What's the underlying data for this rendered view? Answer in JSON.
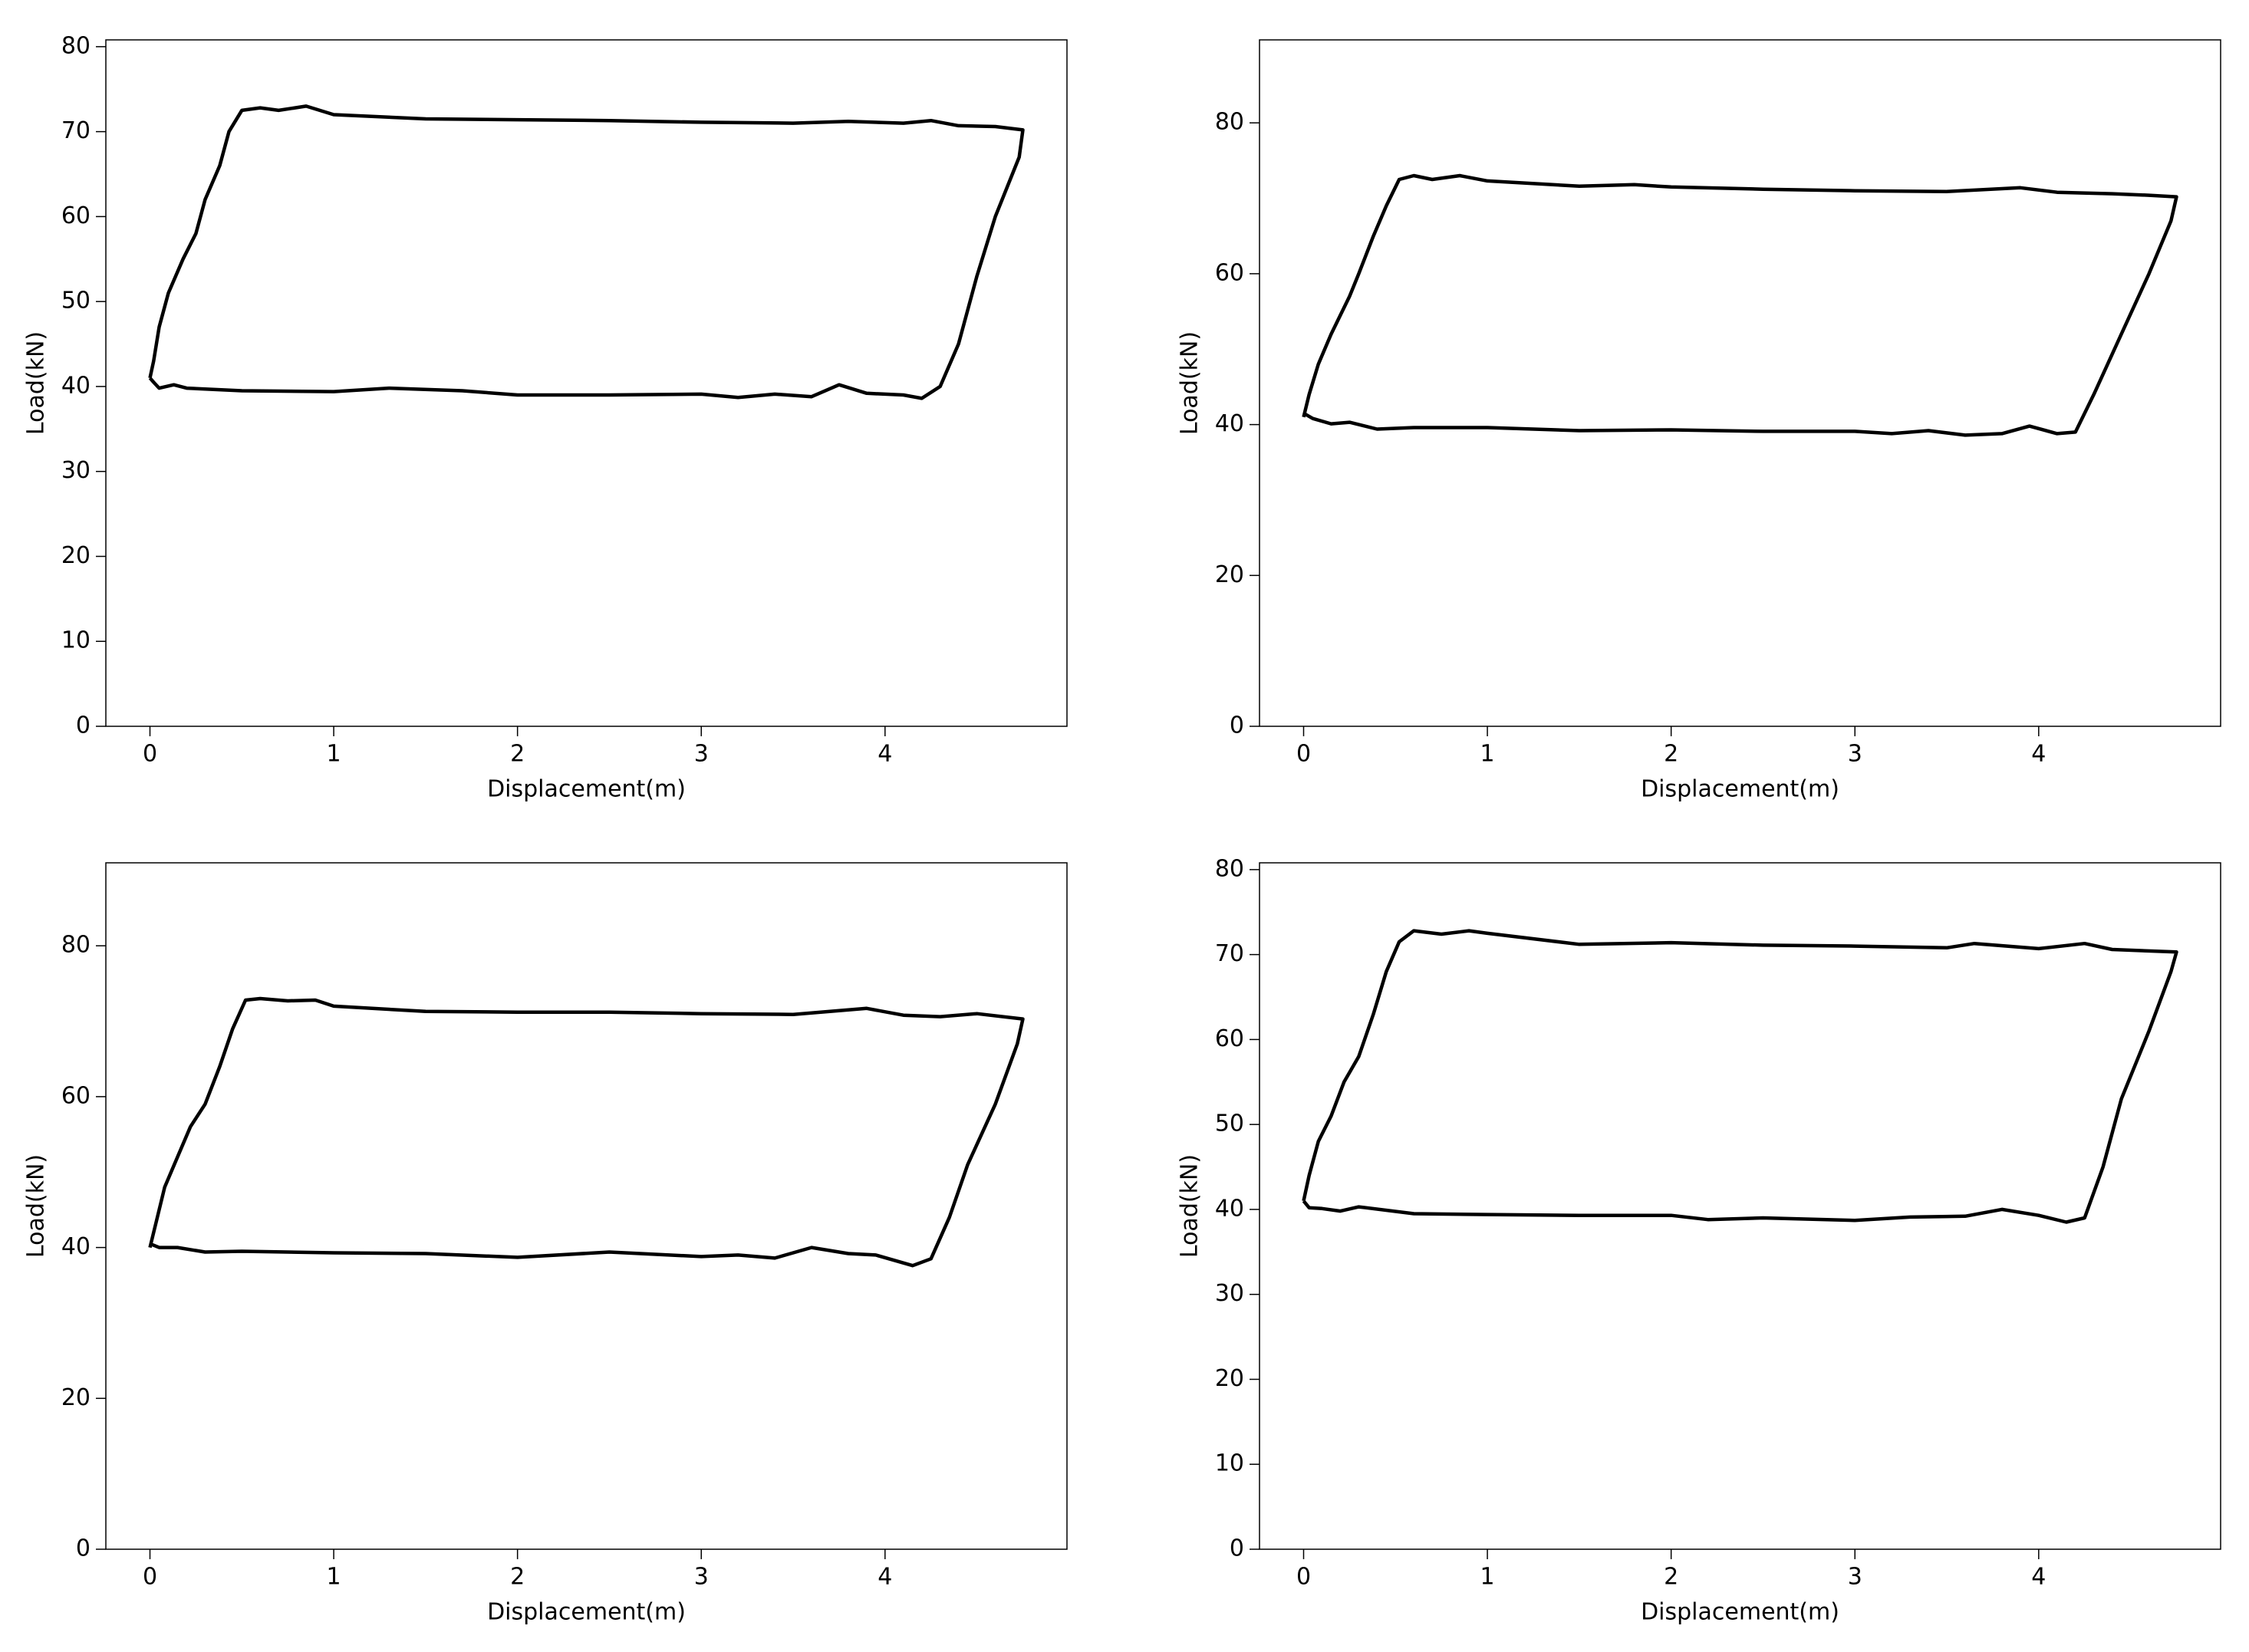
{
  "chart_data": [
    {
      "type": "line",
      "xlabel": "Displacement(m)",
      "ylabel": "Load(kN)",
      "color": "#000000",
      "xlim": [
        -0.24,
        4.99
      ],
      "ylim": [
        0,
        80.8
      ],
      "xticks": [
        0,
        1,
        2,
        3,
        4
      ],
      "yticks": [
        0,
        10,
        20,
        30,
        40,
        50,
        60,
        70,
        80
      ],
      "x": [
        0,
        0.02,
        0.05,
        0.1,
        0.18,
        0.25,
        0.3,
        0.38,
        0.43,
        0.5,
        0.6,
        0.7,
        0.85,
        1,
        1.5,
        2,
        2.5,
        3,
        3.5,
        3.8,
        4.1,
        4.25,
        4.4,
        4.6,
        4.75,
        4.73,
        4.6,
        4.5,
        4.4,
        4.3,
        4.2,
        4.1,
        3.9,
        3.75,
        3.6,
        3.4,
        3.2,
        3,
        2.5,
        2,
        1.7,
        1.3,
        1,
        0.5,
        0.2,
        0.13,
        0.05,
        0.02,
        0
      ],
      "values": [
        41,
        43,
        47,
        51,
        55,
        58,
        62,
        66,
        70,
        72.5,
        72.8,
        72.5,
        73,
        72,
        71.5,
        71.4,
        71.3,
        71.1,
        71,
        71.2,
        71,
        71.3,
        70.7,
        70.6,
        70.2,
        67,
        60,
        53,
        45,
        40,
        38.6,
        39,
        39.2,
        40.2,
        38.8,
        39.1,
        38.7,
        39.1,
        39,
        39,
        39.5,
        39.8,
        39.4,
        39.5,
        39.8,
        40.2,
        39.8,
        40.5,
        41
      ]
    },
    {
      "type": "line",
      "xlabel": "Displacement(m)",
      "ylabel": "Load(kN)",
      "color": "#000000",
      "xlim": [
        -0.24,
        4.99
      ],
      "ylim": [
        0,
        91
      ],
      "xticks": [
        0,
        1,
        2,
        3,
        4
      ],
      "yticks": [
        0,
        20,
        40,
        60,
        80
      ],
      "x": [
        0,
        0.03,
        0.08,
        0.15,
        0.25,
        0.3,
        0.38,
        0.45,
        0.52,
        0.6,
        0.7,
        0.85,
        1,
        1.5,
        1.8,
        2,
        2.5,
        3,
        3.5,
        3.9,
        4.1,
        4.4,
        4.6,
        4.75,
        4.72,
        4.6,
        4.45,
        4.3,
        4.2,
        4.1,
        3.95,
        3.8,
        3.6,
        3.4,
        3.2,
        3,
        2.5,
        2,
        1.5,
        1,
        0.6,
        0.4,
        0.25,
        0.15,
        0.05,
        0
      ],
      "values": [
        41,
        44,
        48,
        52,
        57,
        60,
        65,
        69,
        72.5,
        73,
        72.5,
        73,
        72.3,
        71.6,
        71.8,
        71.5,
        71.2,
        71,
        70.9,
        71.4,
        70.8,
        70.6,
        70.4,
        70.2,
        67,
        60,
        52,
        44,
        39,
        38.8,
        39.8,
        38.8,
        38.6,
        39.2,
        38.8,
        39.1,
        39.1,
        39.3,
        39.2,
        39.6,
        39.6,
        39.4,
        40.3,
        40.1,
        40.8,
        41.5
      ]
    },
    {
      "type": "line",
      "xlabel": "Displacement(m)",
      "ylabel": "Load(kN)",
      "color": "#000000",
      "xlim": [
        -0.24,
        4.99
      ],
      "ylim": [
        0,
        91
      ],
      "xticks": [
        0,
        1,
        2,
        3,
        4
      ],
      "yticks": [
        0,
        20,
        40,
        60,
        80
      ],
      "x": [
        0,
        0.03,
        0.08,
        0.15,
        0.22,
        0.3,
        0.38,
        0.45,
        0.52,
        0.6,
        0.75,
        0.9,
        1,
        1.5,
        2,
        2.5,
        3,
        3.5,
        3.9,
        4.1,
        4.3,
        4.5,
        4.75,
        4.72,
        4.6,
        4.45,
        4.35,
        4.25,
        4.15,
        3.95,
        3.8,
        3.6,
        3.4,
        3.2,
        3,
        2.5,
        2,
        1.5,
        1,
        0.5,
        0.3,
        0.15,
        0.05,
        0
      ],
      "values": [
        40,
        43,
        48,
        52,
        56,
        59,
        64,
        69,
        72.8,
        73,
        72.7,
        72.8,
        72,
        71.3,
        71.2,
        71.2,
        71,
        70.9,
        71.7,
        70.8,
        70.6,
        71,
        70.3,
        67,
        59,
        51,
        44,
        38.5,
        37.6,
        39,
        39.2,
        40,
        38.6,
        39,
        38.8,
        39.4,
        38.7,
        39.2,
        39.3,
        39.5,
        39.4,
        40,
        40,
        40.5
      ]
    },
    {
      "type": "line",
      "xlabel": "Displacement(m)",
      "ylabel": "Load(kN)",
      "color": "#000000",
      "xlim": [
        -0.24,
        4.99
      ],
      "ylim": [
        0,
        80.8
      ],
      "xticks": [
        0,
        1,
        2,
        3,
        4
      ],
      "yticks": [
        0,
        10,
        20,
        30,
        40,
        50,
        60,
        70,
        80
      ],
      "x": [
        0,
        0.03,
        0.08,
        0.15,
        0.22,
        0.3,
        0.38,
        0.45,
        0.52,
        0.6,
        0.75,
        0.9,
        1,
        1.5,
        2,
        2.5,
        3,
        3.5,
        3.65,
        4,
        4.25,
        4.4,
        4.75,
        4.72,
        4.6,
        4.45,
        4.35,
        4.25,
        4.15,
        4,
        3.8,
        3.6,
        3.3,
        3,
        2.5,
        2.2,
        2,
        1.5,
        1,
        0.6,
        0.3,
        0.2,
        0.1,
        0.03,
        0
      ],
      "values": [
        41,
        44,
        48,
        51,
        55,
        58,
        63,
        68,
        71.5,
        72.8,
        72.4,
        72.8,
        72.5,
        71.2,
        71.4,
        71.1,
        71,
        70.8,
        71.3,
        70.7,
        71.3,
        70.6,
        70.3,
        68,
        61,
        53,
        45,
        39,
        38.5,
        39.3,
        40,
        39.2,
        39.1,
        38.7,
        39,
        38.8,
        39.3,
        39.3,
        39.4,
        39.5,
        40.3,
        39.8,
        40.1,
        40.2,
        41
      ]
    }
  ]
}
